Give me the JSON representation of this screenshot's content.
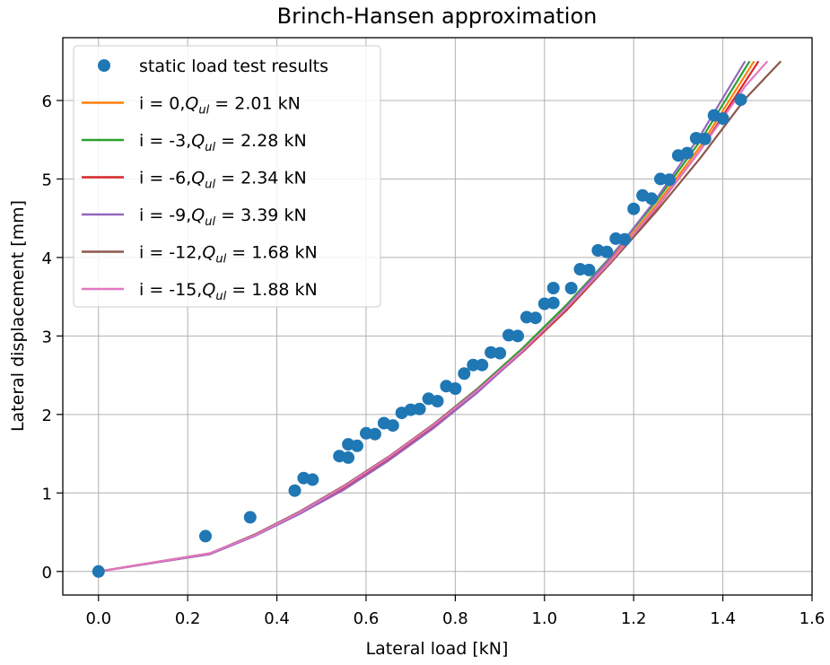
{
  "chart_data": {
    "type": "line",
    "title": "Brinch-Hansen approximation",
    "xlabel": "Lateral load [kN]",
    "ylabel": "Lateral displacement [mm]",
    "xlim": [
      -0.08,
      1.6
    ],
    "ylim": [
      -0.3,
      6.8
    ],
    "xticks": [
      0.0,
      0.2,
      0.4,
      0.6,
      0.8,
      1.0,
      1.2,
      1.4,
      1.6
    ],
    "xtick_labels": [
      "0.0",
      "0.2",
      "0.4",
      "0.6",
      "0.8",
      "1.0",
      "1.2",
      "1.4",
      "1.6"
    ],
    "yticks": [
      0,
      1,
      2,
      3,
      4,
      5,
      6
    ],
    "ytick_labels": [
      "0",
      "1",
      "2",
      "3",
      "4",
      "5",
      "6"
    ],
    "grid": true,
    "legend_position": "top-left",
    "scatter": {
      "name": "static load test results",
      "color": "#1f77b4",
      "x": [
        0.0,
        0.24,
        0.34,
        0.44,
        0.46,
        0.48,
        0.54,
        0.56,
        0.56,
        0.58,
        0.6,
        0.62,
        0.64,
        0.66,
        0.68,
        0.7,
        0.72,
        0.74,
        0.76,
        0.78,
        0.8,
        0.82,
        0.84,
        0.86,
        0.88,
        0.9,
        0.92,
        0.94,
        0.96,
        0.98,
        1.0,
        1.02,
        1.02,
        1.06,
        1.08,
        1.1,
        1.12,
        1.14,
        1.16,
        1.18,
        1.2,
        1.22,
        1.24,
        1.26,
        1.28,
        1.3,
        1.32,
        1.34,
        1.36,
        1.38,
        1.4,
        1.44
      ],
      "y": [
        0.0,
        0.45,
        0.69,
        1.03,
        1.19,
        1.17,
        1.47,
        1.45,
        1.62,
        1.6,
        1.76,
        1.75,
        1.89,
        1.86,
        2.02,
        2.06,
        2.07,
        2.2,
        2.17,
        2.36,
        2.33,
        2.52,
        2.63,
        2.63,
        2.79,
        2.78,
        3.01,
        3.0,
        3.24,
        3.23,
        3.41,
        3.42,
        3.61,
        3.61,
        3.85,
        3.84,
        4.09,
        4.07,
        4.24,
        4.23,
        4.62,
        4.79,
        4.75,
        5.0,
        4.99,
        5.3,
        5.33,
        5.52,
        5.51,
        5.81,
        5.77,
        6.01
      ]
    },
    "series": [
      {
        "name": "i = 0,",
        "qul": "2.01 kN",
        "color": "#ff7f0e",
        "x": [
          0.0,
          0.25,
          0.35,
          0.45,
          0.55,
          0.65,
          0.75,
          0.85,
          0.95,
          1.05,
          1.15,
          1.25,
          1.35,
          1.47
        ],
        "y": [
          0.0,
          0.23,
          0.46,
          0.75,
          1.07,
          1.44,
          1.85,
          2.31,
          2.81,
          3.36,
          3.98,
          4.66,
          5.42,
          6.5
        ]
      },
      {
        "name": "i = -3,",
        "qul": "2.28 kN",
        "color": "#2ca02c",
        "x": [
          0.0,
          0.25,
          0.35,
          0.45,
          0.55,
          0.65,
          0.75,
          0.85,
          0.95,
          1.05,
          1.15,
          1.25,
          1.35,
          1.46
        ],
        "y": [
          0.0,
          0.23,
          0.46,
          0.75,
          1.08,
          1.45,
          1.87,
          2.33,
          2.84,
          3.4,
          4.02,
          4.71,
          5.49,
          6.5
        ]
      },
      {
        "name": "i = -6,",
        "qul": "2.34 kN",
        "color": "#d62728",
        "x": [
          0.0,
          0.25,
          0.35,
          0.45,
          0.55,
          0.65,
          0.75,
          0.85,
          0.95,
          1.05,
          1.15,
          1.25,
          1.35,
          1.48
        ],
        "y": [
          0.0,
          0.23,
          0.46,
          0.75,
          1.06,
          1.43,
          1.84,
          2.29,
          2.79,
          3.33,
          3.94,
          4.62,
          5.37,
          6.5
        ]
      },
      {
        "name": "i = -9,",
        "qul": "3.39 kN",
        "color": "#9467bd",
        "x": [
          0.0,
          0.25,
          0.35,
          0.45,
          0.55,
          0.65,
          0.75,
          0.85,
          0.95,
          1.05,
          1.15,
          1.25,
          1.35,
          1.45
        ],
        "y": [
          0.0,
          0.22,
          0.45,
          0.73,
          1.04,
          1.41,
          1.82,
          2.28,
          2.8,
          3.37,
          4.01,
          4.74,
          5.56,
          6.5
        ]
      },
      {
        "name": "i = -12,",
        "qul": "1.68 kN",
        "color": "#8c564b",
        "x": [
          0.0,
          0.25,
          0.35,
          0.45,
          0.55,
          0.65,
          0.75,
          0.85,
          0.95,
          1.05,
          1.15,
          1.25,
          1.35,
          1.45,
          1.53
        ],
        "y": [
          0.0,
          0.23,
          0.47,
          0.76,
          1.09,
          1.46,
          1.87,
          2.32,
          2.81,
          3.35,
          3.94,
          4.58,
          5.27,
          6.02,
          6.5
        ]
      },
      {
        "name": "i = -15,",
        "qul": "1.88 kN",
        "color": "#e377c2",
        "x": [
          0.0,
          0.25,
          0.35,
          0.45,
          0.55,
          0.65,
          0.75,
          0.85,
          0.95,
          1.05,
          1.15,
          1.25,
          1.35,
          1.45,
          1.5
        ],
        "y": [
          0.0,
          0.23,
          0.46,
          0.75,
          1.08,
          1.45,
          1.86,
          2.31,
          2.81,
          3.36,
          3.96,
          4.63,
          5.37,
          6.18,
          6.5
        ]
      }
    ]
  }
}
